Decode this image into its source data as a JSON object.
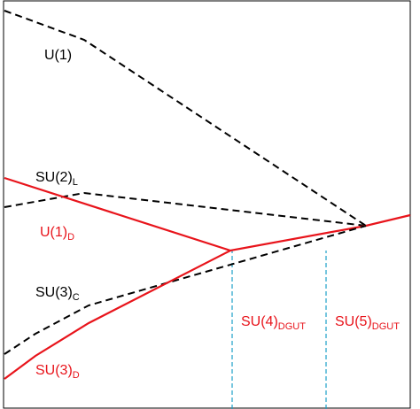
{
  "chart_data": {
    "type": "line",
    "xlim": [
      0,
      474
    ],
    "ylim": [
      0,
      462
    ],
    "series": [
      {
        "name": "U(1)",
        "color": "#000000",
        "dash": true,
        "x": [
          5,
          95,
          413
        ],
        "values": [
          450,
          417,
          207
        ]
      },
      {
        "name": "SU(2)",
        "subscript": "L",
        "color": "#000000",
        "dash": true,
        "x": [
          5,
          95,
          413
        ],
        "values": [
          228,
          244,
          207
        ]
      },
      {
        "name": "U(1)",
        "subscript": "D",
        "color": "#e8141b",
        "dash": false,
        "x": [
          5,
          260,
          413,
          463
        ],
        "values": [
          261,
          179,
          207,
          219
        ]
      },
      {
        "name": "SU(3)",
        "subscript": "C",
        "color": "#000000",
        "dash": true,
        "x": [
          5,
          40,
          100,
          413
        ],
        "values": [
          62,
          85,
          117,
          207
        ]
      },
      {
        "name": "SU(3)",
        "subscript": "D",
        "color": "#e8141b",
        "dash": false,
        "x": [
          5,
          40,
          100,
          260
        ],
        "values": [
          34,
          60,
          97,
          179
        ]
      }
    ],
    "thresholds": [
      {
        "x": 262,
        "label": "SU(4)",
        "subscript": "DGUT",
        "color": "#1a9fc9"
      },
      {
        "x": 368,
        "label": "SU(5)",
        "subscript": "DGUT",
        "color": "#1a9fc9"
      }
    ]
  }
}
